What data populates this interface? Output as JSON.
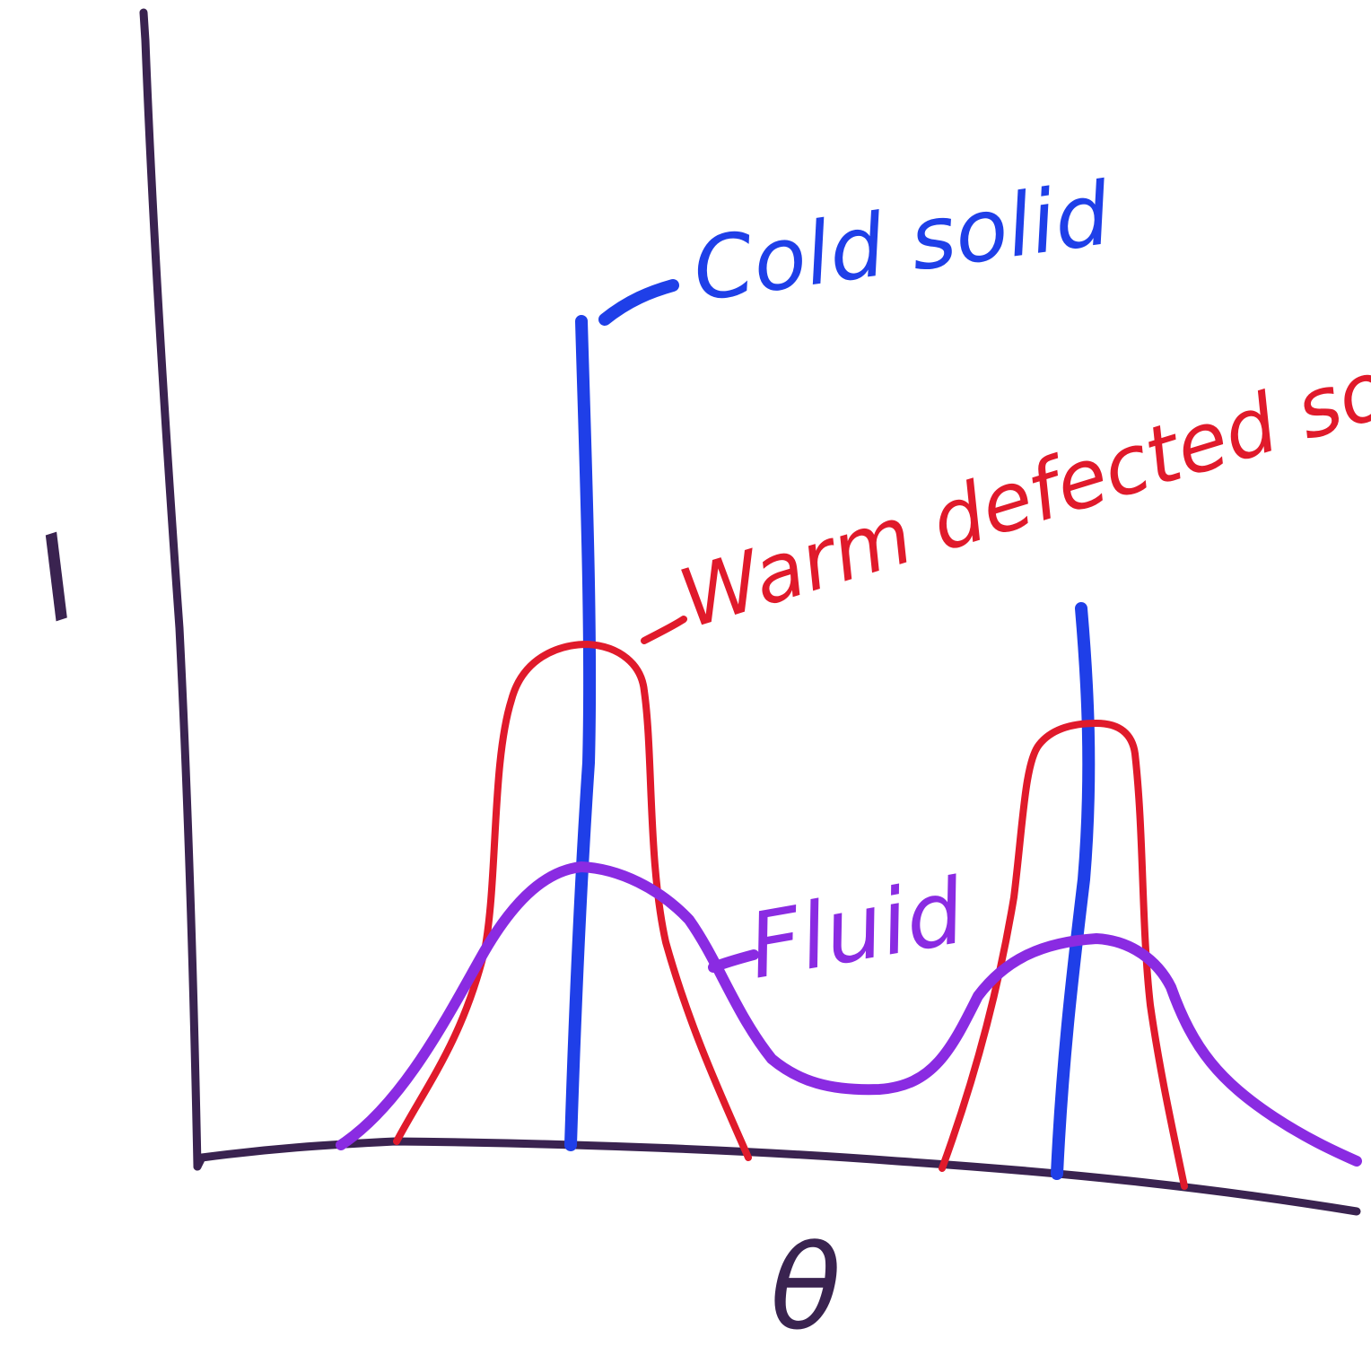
{
  "axes": {
    "y_label": "I",
    "x_label": "θ"
  },
  "labels": {
    "cold_solid": "Cold solid",
    "warm_defected_solid": "Warm defected solid",
    "fluid": "Fluid"
  },
  "colors": {
    "axis": "#3a2350",
    "cold_solid": "#1f3fe8",
    "warm_defected_solid": "#e01a2b",
    "fluid": "#8a2be2"
  }
}
